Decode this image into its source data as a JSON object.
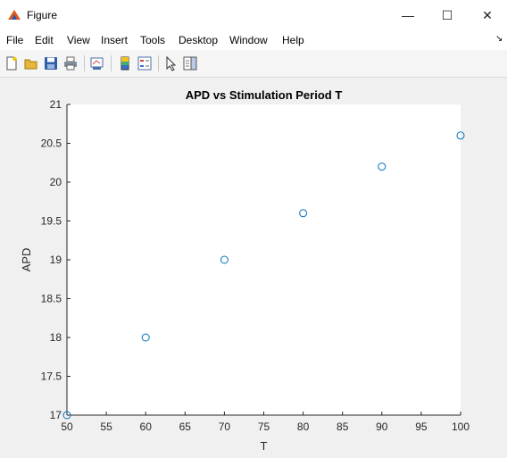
{
  "window": {
    "title": "Figure",
    "minimize_glyph": "—",
    "maximize_glyph": "☐",
    "close_glyph": "✕",
    "icon": "matlab-figure-icon"
  },
  "menu": {
    "items": [
      "File",
      "Edit",
      "View",
      "Insert",
      "Tools",
      "Desktop",
      "Window",
      "Help"
    ],
    "overflow_glyph": "↘"
  },
  "toolbar": {
    "buttons": [
      "new-figure-icon",
      "open-file-icon",
      "save-icon",
      "print-icon",
      "link-plot-icon",
      "insert-colorbar-icon",
      "insert-legend-icon",
      "edit-plot-icon",
      "show-plot-tools-icon"
    ]
  },
  "chart_data": {
    "type": "scatter",
    "title": "APD vs Stimulation Period T",
    "xlabel": "T",
    "ylabel": "APD",
    "x": [
      50,
      60,
      70,
      80,
      90,
      100
    ],
    "y": [
      17,
      18,
      19,
      19.6,
      20.2,
      20.6
    ],
    "xlim": [
      50,
      100
    ],
    "ylim": [
      17,
      21
    ],
    "xticks": [
      50,
      55,
      60,
      65,
      70,
      75,
      80,
      85,
      90,
      95,
      100
    ],
    "yticks": [
      17,
      17.5,
      18,
      18.5,
      19,
      19.5,
      20,
      20.5,
      21
    ],
    "marker": "circle-open",
    "marker_color": "#0072bd",
    "grid": false,
    "box": "left-bottom"
  }
}
